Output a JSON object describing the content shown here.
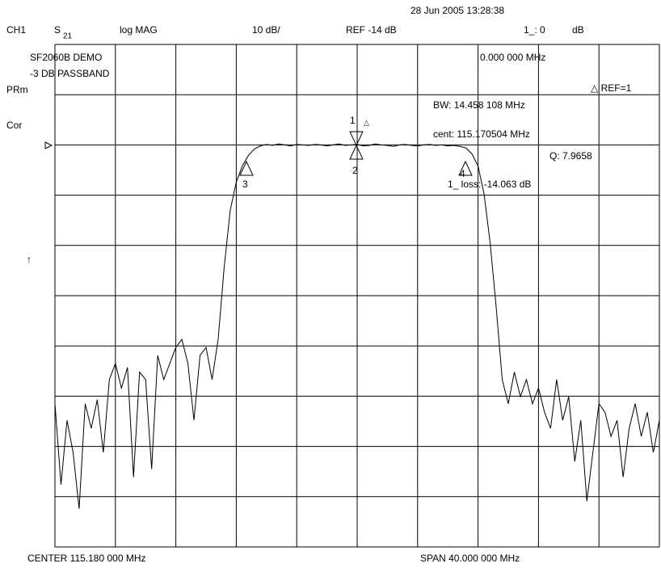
{
  "chart_data": {
    "type": "line",
    "texts": [
      "28 Jun 2005 13:28:38",
      "CH1",
      "S",
      "21",
      "log MAG",
      "10 dB/",
      "REF -14 dB",
      "1_: 0",
      "dB",
      "SF2060B DEMO",
      "-3 DB PASSBAND",
      "PRm",
      "Cor",
      "0.000 000 MHz",
      "△ REF=1",
      "BW: 14.458 108 MHz",
      "cent: 115.170504 MHz",
      "Q: 7.9658",
      "1_ loss: -14.063 dB",
      "↑",
      "1",
      "△",
      "2",
      "3",
      "4",
      "CENTER 115.180 000 MHz",
      "SPAN 40.000 000 MHz"
    ],
    "xlim": [
      95.18,
      135.18
    ],
    "ylim": [
      -94,
      6
    ],
    "xticks": [
      95.18,
      99.18,
      103.18,
      107.18,
      111.18,
      115.18,
      119.18,
      123.18,
      127.18,
      131.18,
      135.18
    ],
    "yticks": [
      6,
      -4,
      -14,
      -24,
      -34,
      -44,
      -54,
      -64,
      -74,
      -84,
      -94
    ],
    "grid": true,
    "color": "#000000",
    "x": [
      95.18,
      95.58,
      95.98,
      96.38,
      96.78,
      97.18,
      97.58,
      97.98,
      98.38,
      98.78,
      99.18,
      99.58,
      99.98,
      100.38,
      100.78,
      101.18,
      101.58,
      101.98,
      102.38,
      102.78,
      103.18,
      103.58,
      103.98,
      104.38,
      104.78,
      105.18,
      105.58,
      105.98,
      106.38,
      106.78,
      107.18,
      107.58,
      107.98,
      108.38,
      108.78,
      109.18,
      109.58,
      109.98,
      110.38,
      110.78,
      111.18,
      111.58,
      111.98,
      112.38,
      112.78,
      113.18,
      113.58,
      113.98,
      114.38,
      114.78,
      115.18,
      115.58,
      115.98,
      116.38,
      116.78,
      117.18,
      117.58,
      117.98,
      118.38,
      118.78,
      119.18,
      119.58,
      119.98,
      120.38,
      120.78,
      121.18,
      121.58,
      121.98,
      122.38,
      122.78,
      123.18,
      123.58,
      123.98,
      124.38,
      124.78,
      125.18,
      125.58,
      125.98,
      126.38,
      126.78,
      127.18,
      127.58,
      127.98,
      128.38,
      128.78,
      129.18,
      129.58,
      129.98,
      130.38,
      130.78,
      131.18,
      131.58,
      131.98,
      132.38,
      132.78,
      133.18,
      133.58,
      133.98,
      134.38,
      134.78,
      135.18
    ],
    "values": [
      -65.5,
      -81.6,
      -68.8,
      -75.2,
      -86.4,
      -65.5,
      -70.4,
      -64.7,
      -75.2,
      -60.7,
      -57.5,
      -62.4,
      -58.3,
      -80.1,
      -59.2,
      -60.7,
      -78.5,
      -55.9,
      -60.7,
      -57.5,
      -54.3,
      -52.7,
      -57.5,
      -68.8,
      -55.9,
      -54.3,
      -60.7,
      -52.7,
      -38.3,
      -27.0,
      -21.4,
      -18.2,
      -16.1,
      -14.8,
      -14.2,
      -13.9,
      -14.1,
      -13.8,
      -14.0,
      -14.2,
      -13.9,
      -14.0,
      -14.1,
      -13.9,
      -14.0,
      -14.2,
      -14.0,
      -13.8,
      -14.1,
      -14.0,
      -13.9,
      -14.2,
      -14.1,
      -13.8,
      -14.0,
      -14.1,
      -14.3,
      -14.0,
      -13.9,
      -14.1,
      -14.2,
      -14.0,
      -13.9,
      -14.1,
      -14.0,
      -14.2,
      -14.1,
      -14.3,
      -14.6,
      -15.8,
      -18.2,
      -23.8,
      -33.5,
      -46.3,
      -60.7,
      -65.5,
      -59.2,
      -64.1,
      -60.7,
      -65.5,
      -62.4,
      -67.2,
      -70.4,
      -60.7,
      -68.8,
      -64.1,
      -77.0,
      -68.8,
      -84.9,
      -75.2,
      -65.5,
      -67.2,
      -72.0,
      -68.8,
      -80.1,
      -70.4,
      -65.5,
      -72.0,
      -67.2,
      -75.2,
      -68.8
    ]
  }
}
